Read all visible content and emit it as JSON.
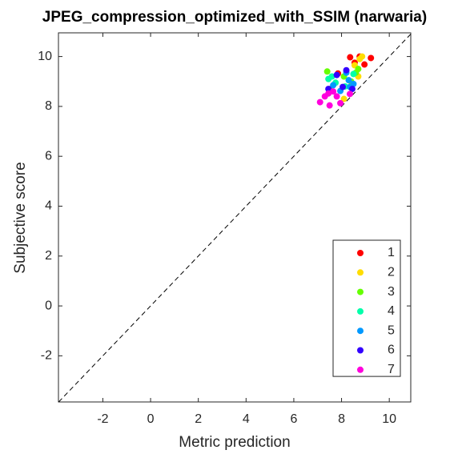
{
  "chart_data": {
    "type": "scatter",
    "title": "JPEG_compression_optimized_with_SSIM (narwaria)",
    "x_label": "Metric prediction",
    "y_label": "Subjective score",
    "xlim": [
      -3.86,
      10.9
    ],
    "ylim": [
      -3.85,
      10.95
    ],
    "xticks": [
      -2,
      0,
      2,
      4,
      6,
      8,
      10
    ],
    "yticks": [
      -2,
      0,
      2,
      4,
      6,
      8,
      10
    ],
    "legend": "bottom-right",
    "diagonal": true,
    "series": [
      {
        "name": "1",
        "color": "#ff0000",
        "x": [
          8.36,
          9.23,
          8.76,
          8.96,
          7.85,
          8.55
        ],
        "values": [
          9.97,
          9.94,
          10.0,
          9.68,
          9.32,
          9.75
        ]
      },
      {
        "name": "2",
        "color": "#ffdd00",
        "x": [
          8.76,
          8.86,
          8.1,
          8.55,
          8.7
        ],
        "values": [
          9.9,
          10.0,
          8.3,
          9.65,
          9.2
        ]
      },
      {
        "name": "3",
        "color": "#66ff00",
        "x": [
          7.4,
          8.6,
          8.4,
          7.5,
          8.1,
          8.7
        ],
        "values": [
          9.4,
          9.35,
          9.0,
          8.7,
          9.2,
          9.5
        ]
      },
      {
        "name": "4",
        "color": "#00ffaa",
        "x": [
          7.45,
          8.5,
          8.15,
          7.75,
          7.6
        ],
        "values": [
          9.1,
          9.3,
          8.8,
          8.95,
          9.2
        ]
      },
      {
        "name": "5",
        "color": "#0099ff",
        "x": [
          8.2,
          8.35,
          7.95,
          8.5,
          7.65,
          8.3
        ],
        "values": [
          9.35,
          8.78,
          8.62,
          8.9,
          8.85,
          9.05
        ]
      },
      {
        "name": "6",
        "color": "#3300ff",
        "x": [
          7.8,
          8.05,
          8.45,
          7.45,
          8.2
        ],
        "values": [
          9.26,
          8.78,
          8.7,
          8.7,
          9.45
        ]
      },
      {
        "name": "7",
        "color": "#ff00dd",
        "x": [
          7.1,
          7.5,
          7.45,
          7.8,
          8.35,
          7.95,
          7.3,
          7.65
        ],
        "values": [
          8.17,
          8.04,
          8.52,
          8.4,
          8.5,
          8.13,
          8.4,
          8.6
        ]
      }
    ]
  }
}
